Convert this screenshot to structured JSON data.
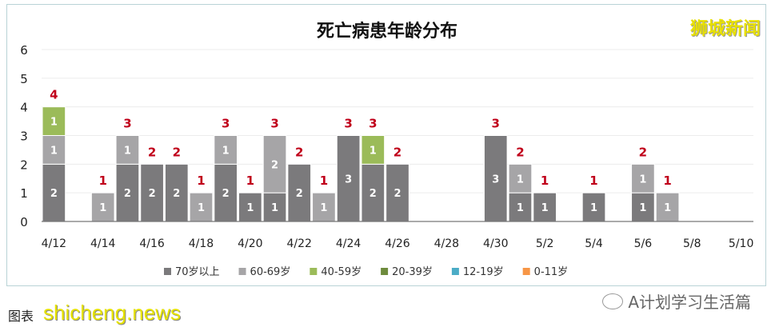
{
  "chart_data": {
    "type": "bar",
    "stacked": true,
    "title": "死亡病患年龄分布",
    "xlabel": "",
    "ylabel": "",
    "ylim": [
      0,
      6
    ],
    "yticks": [
      0,
      1,
      2,
      3,
      4,
      5,
      6
    ],
    "grid": true,
    "legend_position": "bottom",
    "categories": [
      "4/12",
      "4/13",
      "4/14",
      "4/15",
      "4/16",
      "4/17",
      "4/18",
      "4/19",
      "4/20",
      "4/21",
      "4/22",
      "4/23",
      "4/24",
      "4/25",
      "4/26",
      "4/27",
      "4/28",
      "4/29",
      "4/30",
      "5/1",
      "5/2",
      "5/3",
      "5/4",
      "5/5",
      "5/6",
      "5/7",
      "5/8",
      "5/9",
      "5/10"
    ],
    "xtick_labels": [
      "4/12",
      "4/14",
      "4/16",
      "4/18",
      "4/20",
      "4/22",
      "4/24",
      "4/26",
      "4/28",
      "4/30",
      "5/2",
      "5/4",
      "5/6",
      "5/8",
      "5/10"
    ],
    "series": [
      {
        "name": "70岁以上",
        "color": "#7b7a7c",
        "values": [
          2,
          0,
          0,
          2,
          2,
          2,
          0,
          2,
          1,
          1,
          2,
          0,
          3,
          2,
          2,
          0,
          0,
          0,
          3,
          1,
          1,
          0,
          1,
          0,
          1,
          0,
          0,
          0,
          0
        ]
      },
      {
        "name": "60-69岁",
        "color": "#a6a5a7",
        "values": [
          1,
          0,
          1,
          1,
          0,
          0,
          1,
          1,
          0,
          2,
          0,
          1,
          0,
          0,
          0,
          0,
          0,
          0,
          0,
          1,
          0,
          0,
          0,
          0,
          1,
          1,
          0,
          0,
          0
        ]
      },
      {
        "name": "40-59岁",
        "color": "#9bbb59",
        "values": [
          1,
          0,
          0,
          0,
          0,
          0,
          0,
          0,
          0,
          0,
          0,
          0,
          0,
          1,
          0,
          0,
          0,
          0,
          0,
          0,
          0,
          0,
          0,
          0,
          0,
          0,
          0,
          0,
          0
        ]
      },
      {
        "name": "20-39岁",
        "color": "#6e8b3d",
        "values": [
          0,
          0,
          0,
          0,
          0,
          0,
          0,
          0,
          0,
          0,
          0,
          0,
          0,
          0,
          0,
          0,
          0,
          0,
          0,
          0,
          0,
          0,
          0,
          0,
          0,
          0,
          0,
          0,
          0
        ]
      },
      {
        "name": "12-19岁",
        "color": "#4bacc6",
        "values": [
          0,
          0,
          0,
          0,
          0,
          0,
          0,
          0,
          0,
          0,
          0,
          0,
          0,
          0,
          0,
          0,
          0,
          0,
          0,
          0,
          0,
          0,
          0,
          0,
          0,
          0,
          0,
          0,
          0
        ]
      },
      {
        "name": "0-11岁",
        "color": "#f79646",
        "values": [
          0,
          0,
          0,
          0,
          0,
          0,
          0,
          0,
          0,
          0,
          0,
          0,
          0,
          0,
          0,
          0,
          0,
          0,
          0,
          0,
          0,
          0,
          0,
          0,
          0,
          0,
          0,
          0,
          0
        ]
      }
    ],
    "total_label_color": "#c0001a"
  },
  "watermark_top": "狮城新闻",
  "watermark_bottom": "shicheng.news",
  "caption": "图表",
  "wechat_account": "A计划学习生活篇"
}
